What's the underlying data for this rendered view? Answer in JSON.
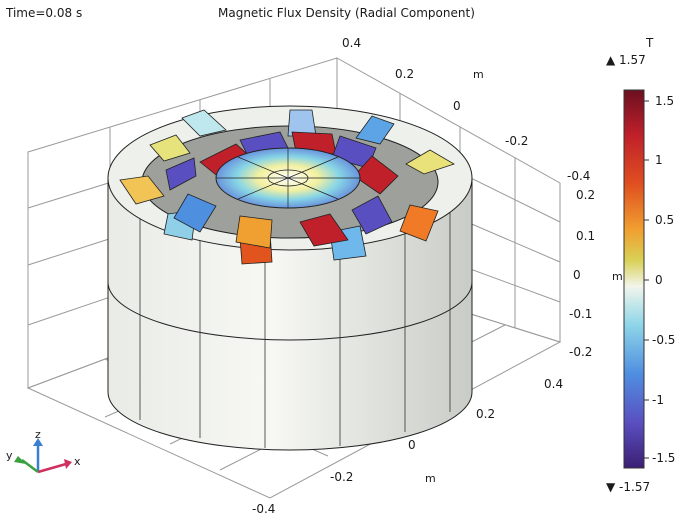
{
  "time_label": "Time=0.08 s",
  "plot_title": "Magnetic Flux Density (Radial Component)",
  "axis_ticks": {
    "z": [
      "0.4",
      "0.2",
      "0",
      "-0.2",
      "-0.4"
    ],
    "z_unit": "m",
    "right": [
      "0.2",
      "0.1",
      "0",
      "-0.1",
      "-0.2"
    ],
    "right_unit": "m",
    "x": [
      "0.4",
      "0.2",
      "0",
      "-0.2",
      "-0.4"
    ],
    "x_unit": "m"
  },
  "triad": {
    "x": "x",
    "y": "y",
    "z": "z"
  },
  "colorbar": {
    "unit": "T",
    "max_label": "▲ 1.57",
    "min_label": "▼ -1.57",
    "ticks": [
      "1.5",
      "1",
      "0.5",
      "0",
      "-0.5",
      "-1",
      "-1.5"
    ],
    "range": [
      -1.57,
      1.57
    ],
    "colormap": [
      "#3b1f73",
      "#5a4fc0",
      "#4f8fe0",
      "#8fd6e8",
      "#f2f5ec",
      "#d9d055",
      "#f0a030",
      "#e05020",
      "#c0202a",
      "#6b1020"
    ]
  }
}
